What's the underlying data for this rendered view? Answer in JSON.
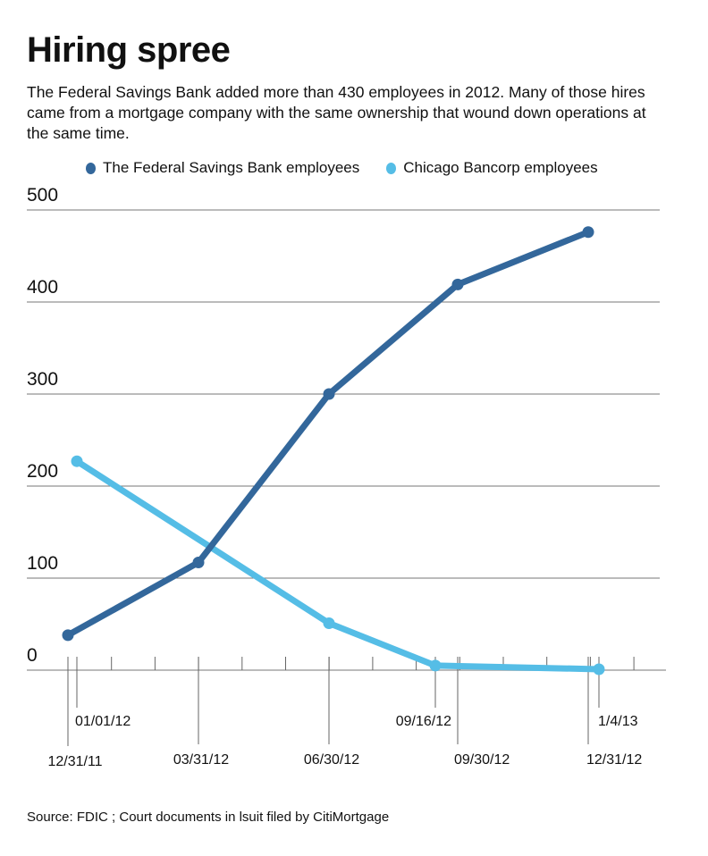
{
  "chart_data": {
    "type": "line",
    "title": "Hiring spree",
    "subtitle": "The Federal Savings Bank added more than 430 employees in 2012. Many of those hires came from a mortgage company with the same ownership that wound down operations at the same time.",
    "source": "Source: FDIC ; Court documents in lsuit filed by CitiMortgage",
    "ylim": [
      0,
      500
    ],
    "yticks": [
      0,
      100,
      200,
      300,
      400,
      500
    ],
    "grid": true,
    "legend_position": "top",
    "xlabels": [
      "12/31/11",
      "01/01/12",
      "03/31/12",
      "06/30/12",
      "09/16/12",
      "09/30/12",
      "12/31/12",
      "1/4/13"
    ],
    "series": [
      {
        "name": "The Federal Savings Bank employees",
        "color": "#33679b",
        "x": [
          "12/31/11",
          "03/31/12",
          "06/30/12",
          "09/30/12",
          "12/31/12"
        ],
        "values": [
          38,
          117,
          300,
          419,
          476
        ]
      },
      {
        "name": "Chicago Bancorp employees",
        "color": "#55bde6",
        "x": [
          "01/01/12",
          "06/30/12",
          "09/16/12",
          "1/4/13"
        ],
        "values": [
          227,
          51,
          5,
          1
        ]
      }
    ]
  }
}
